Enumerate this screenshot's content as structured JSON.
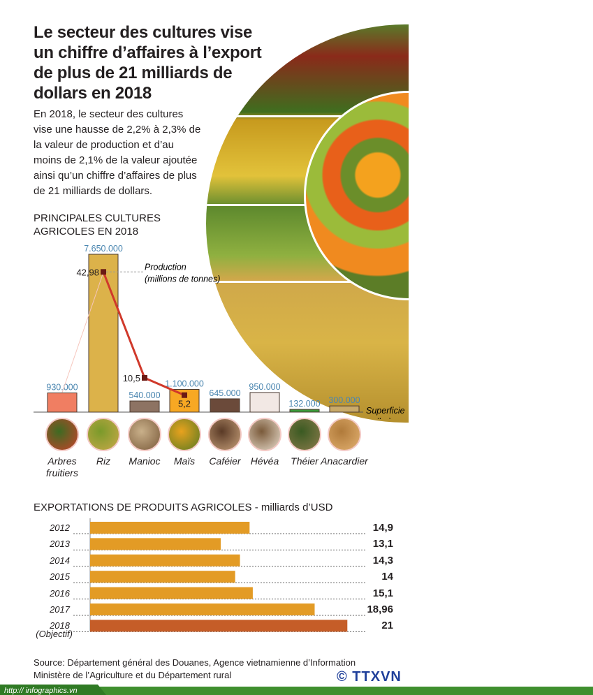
{
  "header": {
    "title": "Le secteur des cultures vise un chiffre d’affaires à l’export de plus de 21 milliards de dollars en 2018",
    "intro": "En 2018, le secteur des cultures vise une hausse de 2,2% à 2,3% de la valeur de production et d’au moins de 2,1% de la valeur ajoutée ainsi qu’un chiffre d’affaires de plus de 21 milliards de dollars."
  },
  "chart_data": [
    {
      "type": "bar",
      "title": "PRINCIPALES CULTURES AGRICOLES EN 2018",
      "categories": [
        "Arbres fruitiers",
        "Riz",
        "Manioc",
        "Maïs",
        "Caféier",
        "Hévéa",
        "Théier",
        "Anacardier"
      ],
      "series": [
        {
          "name": "Superficie (ha)",
          "values": [
            930000,
            7650000,
            540000,
            1100000,
            645000,
            950000,
            132000,
            300000
          ],
          "labels": [
            "930.000",
            "7.650.000",
            "540.000",
            "1.100.000",
            "645.000",
            "950.000",
            "132.000",
            "300.000"
          ],
          "colors": [
            "#f07e62",
            "#dcb24a",
            "#8d7363",
            "#f7a823",
            "#6b4a3a",
            "#f2e8e4",
            "#3a9a3a",
            "#c9aa6a"
          ]
        }
      ],
      "line_series": {
        "name": "Production (millions de tonnes)",
        "name_line1": "Production",
        "name_line2": "(millions de tonnes)",
        "points": [
          {
            "category": "Riz",
            "value": 42.98,
            "label": "42,98"
          },
          {
            "category": "Manioc",
            "value": 10.5,
            "label": "10,5"
          },
          {
            "category": "Maïs",
            "value": 5.2,
            "label": "5,2"
          }
        ],
        "color": "#d0392b"
      },
      "axis_label_line1": "Superficie",
      "axis_label_line2": "(ha)"
    },
    {
      "type": "bar",
      "orientation": "horizontal",
      "title": "EXPORTATIONS DE PRODUITS AGRICOLES - milliards d’USD",
      "categories": [
        "2012",
        "2013",
        "2014",
        "2015",
        "2016",
        "2017",
        "2018"
      ],
      "category_notes": {
        "2018": "(Objectif)"
      },
      "values": [
        14.9,
        13.1,
        14.3,
        14,
        15.1,
        18.96,
        21
      ],
      "labels": [
        "14,9",
        "13,1",
        "14,3",
        "14",
        "15,1",
        "18,96",
        "21"
      ],
      "xlim": [
        5,
        21
      ],
      "colors": {
        "default": "#e39b25",
        "target": "#c55d28"
      }
    }
  ],
  "footer": {
    "source_line1": "Source: Département général des Douanes, Agence vietnamienne d’Information",
    "source_line2": "Ministère de l’Agriculture et du Département rural",
    "website": "http:// infographics.vn",
    "logo": "© TTXVN"
  }
}
